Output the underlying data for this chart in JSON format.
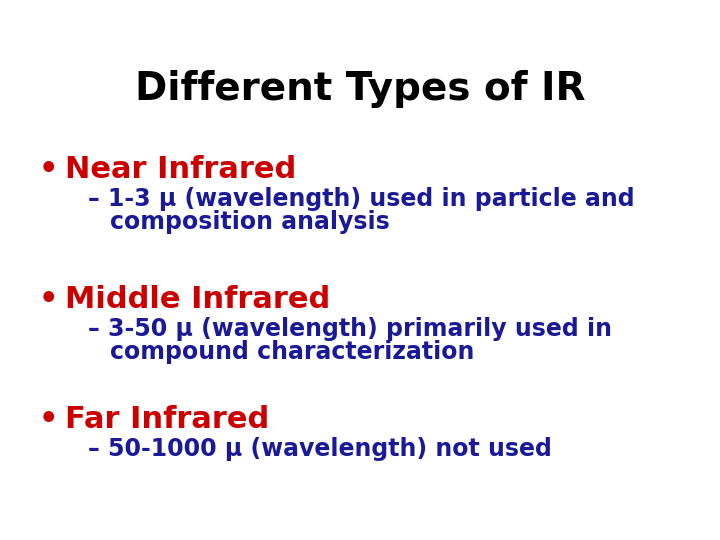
{
  "title": "Different Types of IR",
  "title_color": "#000000",
  "title_fontsize": 28,
  "title_fontweight": "bold",
  "background_color": "#ffffff",
  "bullet_color": "#cc0000",
  "sub_color": "#1a1a99",
  "bullet_fontsize": 22,
  "sub_fontsize": 17,
  "items": [
    {
      "bullet": "Near Infrared",
      "sub_line1": "– 1-3 μ (wavelength) used in particle and",
      "sub_line2": "   composition analysis"
    },
    {
      "bullet": "Middle Infrared",
      "sub_line1": "– 3-50 μ (wavelength) primarily used in",
      "sub_line2": "   compound characterization"
    },
    {
      "bullet": "Far Infrared",
      "sub_line1": "– 50-1000 μ (wavelength) not used",
      "sub_line2": ""
    }
  ]
}
